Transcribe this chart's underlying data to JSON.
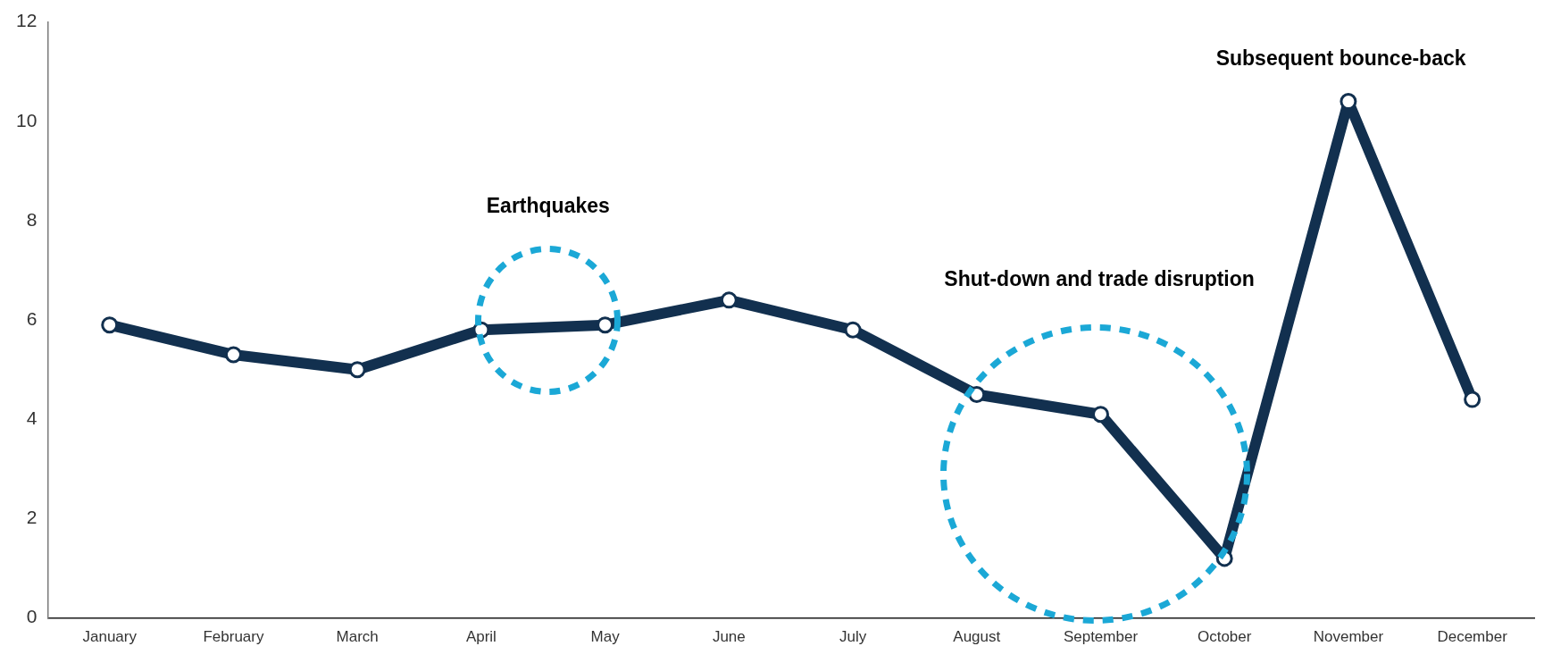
{
  "chart_data": {
    "type": "line",
    "categories": [
      "January",
      "February",
      "March",
      "April",
      "May",
      "June",
      "July",
      "August",
      "September",
      "October",
      "November",
      "December"
    ],
    "values": [
      5.9,
      5.3,
      5.0,
      5.8,
      5.9,
      6.4,
      5.8,
      4.5,
      4.1,
      1.2,
      10.4,
      4.4
    ],
    "color": "#12304f",
    "ylim": [
      0,
      12
    ],
    "yticks": [
      0,
      2,
      4,
      6,
      8,
      10,
      12
    ],
    "marker": "circle",
    "line_style": "solid",
    "annotations": [
      "Earthquakes",
      "Shut-down and trade disruption",
      "Subsequent bounce-back"
    ]
  }
}
